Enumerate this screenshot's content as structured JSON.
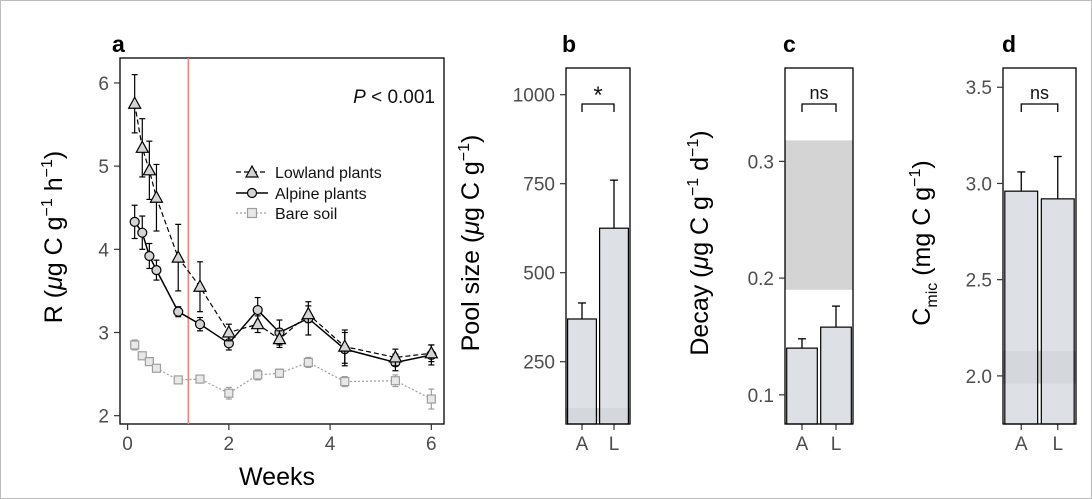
{
  "colors": {
    "lowland": "#000000",
    "alpine": "#000000",
    "bare_soil": "#9e9e9e",
    "marker_fill": "#d4d4d4",
    "bar_fill": "#d3d8de",
    "band": "#cccccc",
    "vline": "#e9877f"
  },
  "chart_data": [
    {
      "panel": "a",
      "type": "line",
      "xlabel": "Weeks",
      "ylabel_main": "R (",
      "ylabel_mu": "μ",
      "ylabel_rest": "g C g",
      "ylabel_exp1": "−1",
      "ylabel_h": " h",
      "ylabel_exp2": "−1",
      "ylabel_close": ")",
      "xlim": [
        -0.15,
        6.25
      ],
      "ylim": [
        1.9,
        6.3
      ],
      "xticks": [
        0,
        2,
        4,
        6
      ],
      "xtick_labels": [
        "0",
        "2",
        "4",
        "6"
      ],
      "yticks": [
        2,
        3,
        4,
        5,
        6
      ],
      "ytick_labels": [
        "2",
        "3",
        "4",
        "5",
        "6"
      ],
      "vline_x": 1.2,
      "annotation_italic": "P",
      "annotation_rest": " < 0.001",
      "legend_position": "center-right",
      "series": [
        {
          "name": "Lowland plants",
          "line": "dashed",
          "marker": "triangle",
          "x": [
            0.14,
            0.29,
            0.43,
            0.57,
            1.0,
            1.43,
            2.0,
            2.57,
            3.0,
            3.57,
            4.29,
            5.29,
            6.0
          ],
          "y": [
            5.75,
            5.22,
            4.95,
            4.62,
            3.9,
            3.55,
            3.0,
            3.1,
            2.92,
            3.22,
            2.83,
            2.7,
            2.75
          ],
          "err": [
            0.35,
            0.35,
            0.35,
            0.4,
            0.4,
            0.3,
            0.1,
            0.1,
            0.1,
            0.1,
            0.2,
            0.1,
            0.1
          ]
        },
        {
          "name": "Alpine plants",
          "line": "solid",
          "marker": "circle",
          "x": [
            0.14,
            0.29,
            0.43,
            0.57,
            1.0,
            1.43,
            2.0,
            2.57,
            3.0,
            3.57,
            4.29,
            5.29,
            6.0
          ],
          "y": [
            4.33,
            4.2,
            3.92,
            3.75,
            3.25,
            3.1,
            2.87,
            3.27,
            3.0,
            3.17,
            2.8,
            2.64,
            2.73
          ],
          "err": [
            0.2,
            0.2,
            0.15,
            0.12,
            0.06,
            0.08,
            0.08,
            0.15,
            0.15,
            0.2,
            0.2,
            0.1,
            0.12
          ]
        },
        {
          "name": "Bare soil",
          "line": "dotted",
          "marker": "square",
          "x": [
            0.14,
            0.29,
            0.43,
            0.57,
            1.0,
            1.43,
            2.0,
            2.57,
            3.0,
            3.57,
            4.29,
            5.29,
            6.0
          ],
          "y": [
            2.85,
            2.72,
            2.65,
            2.57,
            2.43,
            2.44,
            2.27,
            2.49,
            2.51,
            2.64,
            2.41,
            2.42,
            2.2
          ],
          "err": [
            0.06,
            0.04,
            0.03,
            0.03,
            0.03,
            0.03,
            0.07,
            0.06,
            0.05,
            0.06,
            0.06,
            0.07,
            0.12
          ]
        }
      ]
    },
    {
      "panel": "b",
      "type": "bar",
      "ylabel_main": "Pool size (",
      "ylabel_mu": "μ",
      "ylabel_rest": "g C g",
      "ylabel_exp1": "−1",
      "ylabel_close": ")",
      "categories": [
        "A",
        "L"
      ],
      "values": [
        370,
        625
      ],
      "err": [
        45,
        135
      ],
      "ylim": [
        75,
        1075
      ],
      "yticks": [
        250,
        500,
        750,
        1000
      ],
      "ytick_labels": [
        "250",
        "500",
        "750",
        "1000"
      ],
      "band": [
        80,
        120
      ],
      "significance": "*"
    },
    {
      "panel": "c",
      "type": "bar",
      "ylabel_main": "Decay (",
      "ylabel_mu": "μ",
      "ylabel_rest": "g C g",
      "ylabel_exp1": "−1",
      "ylabel_d": " d",
      "ylabel_exp2": "−1",
      "ylabel_close": ")",
      "categories": [
        "A",
        "L"
      ],
      "values": [
        0.14,
        0.158
      ],
      "err": [
        0.008,
        0.018
      ],
      "ylim": [
        0.075,
        0.38
      ],
      "yticks": [
        0.1,
        0.2,
        0.3
      ],
      "ytick_labels": [
        "0.1",
        "0.2",
        "0.3"
      ],
      "band": [
        0.19,
        0.318
      ],
      "significance": "ns"
    },
    {
      "panel": "d",
      "type": "bar",
      "ylabel_main": "C",
      "ylabel_sub": "mic",
      "ylabel_rest": " (mg C g",
      "ylabel_exp1": "−1",
      "ylabel_close": ")",
      "categories": [
        "A",
        "L"
      ],
      "values": [
        2.96,
        2.92
      ],
      "err": [
        0.1,
        0.22
      ],
      "ylim": [
        1.75,
        3.6
      ],
      "yticks": [
        2.0,
        2.5,
        3.0,
        3.5
      ],
      "ytick_labels": [
        "2.0",
        "2.5",
        "3.0",
        "3.5"
      ],
      "band": [
        1.96,
        2.13
      ],
      "significance": "ns"
    }
  ]
}
